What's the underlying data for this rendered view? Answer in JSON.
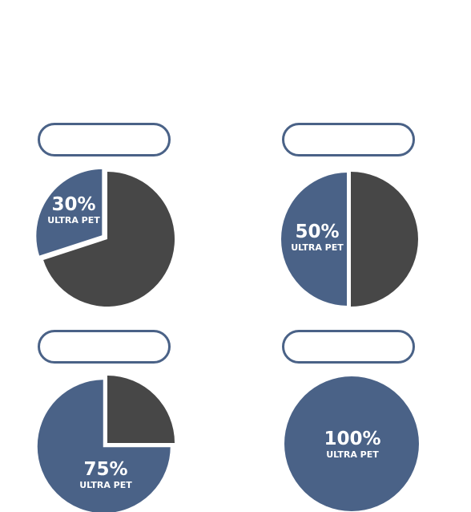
{
  "colors": {
    "accent": "#4a6287",
    "remainder": "#474747",
    "text": "#ffffff"
  },
  "chart_data": [
    {
      "type": "pie",
      "values": [
        30,
        70
      ],
      "label_value": "30%",
      "label_text": "ULTRA PET"
    },
    {
      "type": "pie",
      "values": [
        50,
        50
      ],
      "label_value": "50%",
      "label_text": "ULTRA PET"
    },
    {
      "type": "pie",
      "values": [
        75,
        25
      ],
      "label_value": "75%",
      "label_text": "ULTRA PET"
    },
    {
      "type": "pie",
      "values": [
        100,
        0
      ],
      "label_value": "100%",
      "label_text": "ULTRA PET"
    }
  ]
}
